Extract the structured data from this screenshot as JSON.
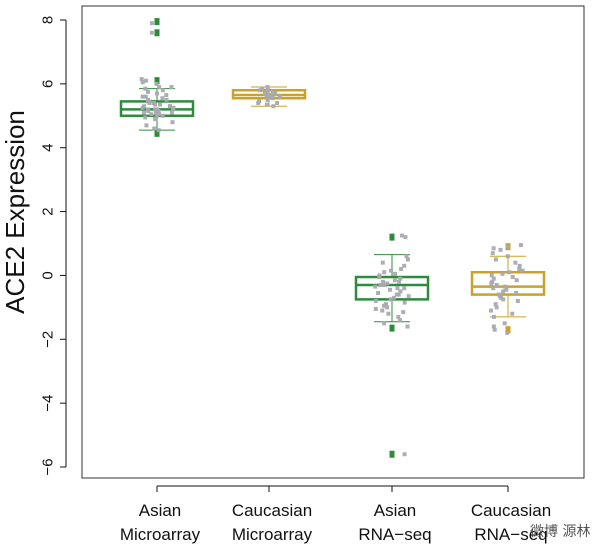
{
  "chart_data": {
    "type": "box",
    "ylabel": "ACE2 Expression",
    "xlabel": "",
    "ylim": [
      -6.2,
      8.4
    ],
    "yticks": [
      -6,
      -4,
      -2,
      0,
      2,
      4,
      6,
      8
    ],
    "grid": false,
    "categories": [
      {
        "line1": "Asian",
        "line2": "Microarray"
      },
      {
        "line1": "Caucasian",
        "line2": "Microarray"
      },
      {
        "line1": "Asian",
        "line2": "RNA−seq"
      },
      {
        "line1": "Caucasian",
        "line2": "RNA−seq"
      }
    ],
    "boxes": [
      {
        "color": "#2e8b3e",
        "q1": 5.0,
        "median": 5.2,
        "q3": 5.45,
        "whisker_low": 4.55,
        "whisker_high": 5.85,
        "outliers": [
          7.95,
          7.6,
          6.1,
          4.45
        ],
        "points": [
          5.0,
          5.05,
          5.1,
          5.15,
          5.2,
          5.2,
          5.25,
          5.3,
          5.35,
          5.4,
          5.45,
          5.5,
          5.55,
          5.6,
          5.7,
          5.75,
          5.8,
          5.85,
          5.9,
          6.0,
          6.1,
          6.15,
          5.1,
          5.2,
          5.3,
          4.9,
          4.8,
          4.7,
          4.6,
          4.55,
          5.0,
          5.4,
          5.6,
          5.25,
          5.35,
          5.45,
          5.15,
          5.05,
          4.95,
          5.65,
          7.9,
          7.6,
          6.05,
          5.9,
          5.2,
          5.3,
          5.1,
          5.5
        ]
      },
      {
        "color": "#c9a227",
        "q1": 5.55,
        "median": 5.65,
        "q3": 5.8,
        "whisker_low": 5.3,
        "whisker_high": 5.9,
        "outliers": [],
        "points": [
          5.6,
          5.65,
          5.7,
          5.75,
          5.8,
          5.85,
          5.5,
          5.45,
          5.4,
          5.35,
          5.3,
          5.55,
          5.6,
          5.7,
          5.75,
          5.65,
          5.5,
          5.4,
          5.8,
          5.9
        ]
      },
      {
        "color": "#2e8b3e",
        "q1": -0.75,
        "median": -0.3,
        "q3": -0.05,
        "whisker_low": -1.45,
        "whisker_high": 0.65,
        "outliers": [
          1.2,
          -1.65,
          -5.6
        ],
        "points": [
          -0.3,
          -0.2,
          -0.1,
          0.0,
          0.1,
          0.2,
          0.3,
          0.5,
          0.6,
          -0.4,
          -0.5,
          -0.6,
          -0.7,
          -0.8,
          -0.9,
          -1.0,
          -1.1,
          -1.2,
          -1.3,
          -1.4,
          -1.5,
          -1.6,
          -0.35,
          -0.25,
          -0.15,
          -0.45,
          -0.55,
          -0.65,
          -0.75,
          -0.85,
          0.05,
          0.15,
          -0.05,
          1.25,
          1.2,
          -0.95,
          -1.05,
          -0.3,
          -0.2,
          -0.6,
          -0.4,
          -5.6,
          0.4,
          -1.15
        ]
      },
      {
        "color": "#c9a227",
        "q1": -0.6,
        "median": -0.35,
        "q3": 0.1,
        "whisker_low": -1.3,
        "whisker_high": 0.6,
        "outliers": [
          0.9,
          -1.7
        ],
        "points": [
          -0.3,
          -0.2,
          -0.1,
          0.0,
          0.1,
          0.2,
          0.3,
          0.5,
          0.6,
          0.7,
          0.8,
          0.9,
          -0.4,
          -0.5,
          -0.6,
          -0.7,
          -0.8,
          -0.9,
          -1.0,
          -1.1,
          -1.2,
          -1.3,
          -1.5,
          -1.7,
          -1.8,
          -0.35,
          -0.25,
          -0.15,
          -0.45,
          -0.55,
          0.05,
          0.15,
          0.4,
          -0.05,
          -0.65,
          -0.75,
          0.85,
          0.95,
          -1.6
        ]
      }
    ],
    "jitter_color": "#a9a9b0"
  },
  "watermark": "微博  源林"
}
